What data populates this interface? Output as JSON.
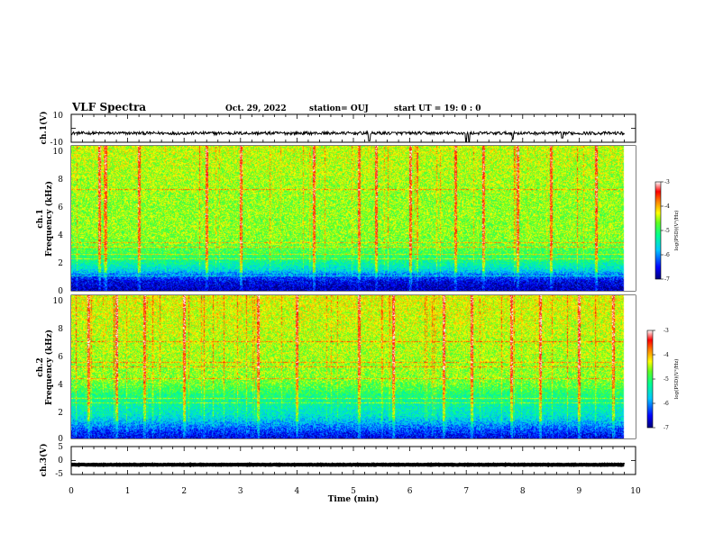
{
  "header": {
    "title": "VLF Spectra",
    "date": "Oct. 29, 2022",
    "station": "station= OUJ",
    "start_ut": "start UT =   19: 0  : 0"
  },
  "colors": {
    "colormap": [
      "#00007a",
      "#0000ff",
      "#00c8ff",
      "#00ffa0",
      "#30ff30",
      "#b4ff00",
      "#ffff00",
      "#ff8000",
      "#ff0000",
      "#ffffff"
    ],
    "waveform": "#000000"
  },
  "chart_data": [
    {
      "id": "ch1-waveform",
      "type": "line",
      "ylabel": "ch.1(V)",
      "ylim": [
        -10,
        10
      ],
      "yticks": [
        "10",
        "-10"
      ],
      "xlim": [
        0,
        10
      ],
      "baseline": -3.5,
      "spikes": [
        {
          "x": 5.28,
          "y": -9
        },
        {
          "x": 7.0,
          "y": -10
        },
        {
          "x": 7.05,
          "y": -9.5
        },
        {
          "x": 7.82,
          "y": -8
        },
        {
          "x": 8.7,
          "y": -7
        }
      ]
    },
    {
      "id": "ch1-spectrogram",
      "type": "heatmap",
      "ylabel": [
        "ch.1",
        "Frequency (kHz)"
      ],
      "ylim": [
        0,
        10
      ],
      "yticks": [
        "10",
        "8",
        "6",
        "4",
        "2",
        "0"
      ],
      "xlim": [
        0,
        9.8
      ],
      "colorbar": {
        "label": "log(PSD)(V²/Hz)",
        "ticks": [
          "-3",
          "-4",
          "-5",
          "-6",
          "-7"
        ],
        "range": [
          -7,
          -3
        ]
      },
      "band_profile": [
        [
          0,
          -6.8
        ],
        [
          0.6,
          -6.6
        ],
        [
          1.0,
          -6.2
        ],
        [
          1.4,
          -5.6
        ],
        [
          2.0,
          -5.2
        ],
        [
          2.6,
          -4.9
        ],
        [
          3.2,
          -4.7
        ],
        [
          4,
          -4.6
        ],
        [
          6,
          -4.6
        ],
        [
          8,
          -4.5
        ],
        [
          10,
          -4.4
        ]
      ],
      "harmonic_lines_khz": [
        1.0,
        2.2,
        2.5,
        3.0,
        3.3,
        7.0
      ],
      "vertical_streaks_min": [
        0.5,
        0.6,
        1.2,
        2.4,
        3.0,
        4.3,
        5.1,
        5.4,
        6.0,
        6.8,
        7.3,
        7.9,
        8.5,
        9.3
      ]
    },
    {
      "id": "ch2-spectrogram",
      "type": "heatmap",
      "ylabel": [
        "ch.2",
        "Frequency (kHz)"
      ],
      "ylim": [
        0,
        10
      ],
      "yticks": [
        "10",
        "8",
        "6",
        "4",
        "2",
        "0"
      ],
      "xlim": [
        0,
        9.8
      ],
      "colorbar": {
        "label": "log(PSD)(V²/Hz)",
        "ticks": [
          "-3",
          "-4",
          "-5",
          "-6",
          "-7"
        ],
        "range": [
          -7,
          -3
        ]
      },
      "band_profile": [
        [
          0,
          -6.6
        ],
        [
          0.5,
          -6.3
        ],
        [
          1.0,
          -5.9
        ],
        [
          1.6,
          -5.5
        ],
        [
          2.4,
          -5.3
        ],
        [
          3.0,
          -5.1
        ],
        [
          3.6,
          -4.8
        ],
        [
          4.4,
          -4.6
        ],
        [
          6,
          -4.5
        ],
        [
          8,
          -4.4
        ],
        [
          10,
          -4.3
        ]
      ],
      "harmonic_lines_khz": [
        2.5,
        2.8,
        4.2,
        5.0,
        5.3,
        6.8
      ],
      "vertical_streaks_min": [
        0.3,
        0.8,
        1.3,
        2.0,
        3.3,
        4.0,
        5.1,
        5.7,
        6.6,
        7.1,
        7.8,
        8.3,
        9.0,
        9.6
      ]
    },
    {
      "id": "ch3-waveform",
      "type": "line",
      "ylabel": "ch.3(V)",
      "ylim": [
        -5,
        5
      ],
      "yticks": [
        "5",
        "0",
        "-5"
      ],
      "xlim": [
        0,
        10
      ],
      "baseline": -1.5,
      "spikes": []
    }
  ],
  "xaxis": {
    "label": "Time (min)",
    "ticks": [
      "0",
      "1",
      "2",
      "3",
      "4",
      "5",
      "6",
      "7",
      "8",
      "9",
      "10"
    ],
    "range": [
      0,
      10
    ]
  }
}
